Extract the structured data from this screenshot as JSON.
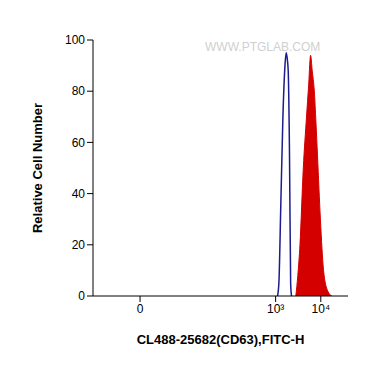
{
  "chart_data": {
    "type": "histogram",
    "x_label": "CL488-25682(CD63),FITC-H",
    "y_label": "Relative Cell Number",
    "annotations": [
      "WWW.PTGLAB.COM"
    ],
    "log": "x",
    "grid": false,
    "xlim": [
      -10,
      40000
    ],
    "xticks": [
      0,
      {
        "value": 1000,
        "label": "10³"
      },
      {
        "value": 10000,
        "label": "10⁴"
      }
    ],
    "ylim": [
      0,
      100
    ],
    "yticks": [
      0,
      20,
      40,
      60,
      80,
      100
    ],
    "series": [
      {
        "type": "line",
        "color": "#1c1c8c",
        "x": [
          1100,
          1180,
          1300,
          1450,
          1610,
          1710,
          1800,
          1900,
          2030,
          2150,
          2250
        ],
        "values": [
          0,
          5,
          35,
          70,
          90,
          95,
          93,
          88,
          55,
          5,
          0
        ]
      },
      {
        "type": "area",
        "color": "#d40000",
        "x": [
          2800,
          3100,
          3460,
          4100,
          4830,
          5370,
          5940,
          6460,
          7190,
          7800,
          8440,
          9800,
          11500,
          14200,
          17500
        ],
        "values": [
          0,
          8,
          20,
          50,
          70,
          82,
          94,
          88,
          80,
          68,
          55,
          30,
          10,
          2,
          0
        ]
      }
    ]
  }
}
